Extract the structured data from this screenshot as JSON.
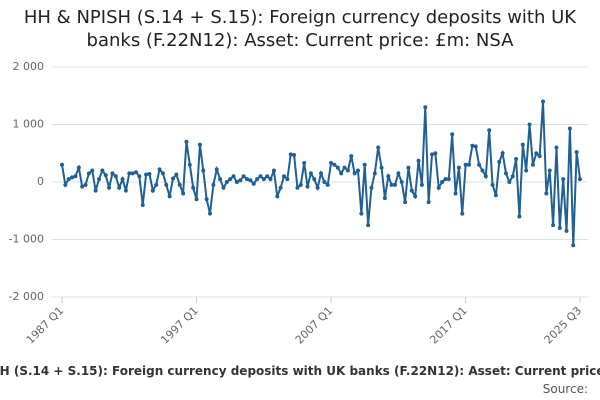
{
  "chart_data": {
    "type": "line",
    "title": "HH & NPISH (S.14 + S.15): Foreign currency deposits with UK banks (F.22N12): Asset: Current price: £m: NSA",
    "source": "Source:",
    "categories": [
      "1987 Q1",
      null,
      null,
      null,
      null,
      null,
      null,
      null,
      null,
      null,
      null,
      null,
      null,
      null,
      null,
      null,
      null,
      null,
      null,
      null,
      null,
      null,
      null,
      null,
      null,
      null,
      null,
      null,
      null,
      null,
      null,
      null,
      null,
      null,
      null,
      null,
      null,
      null,
      null,
      null,
      "1997 Q1",
      null,
      null,
      null,
      null,
      null,
      null,
      null,
      null,
      null,
      null,
      null,
      null,
      null,
      null,
      null,
      null,
      null,
      null,
      null,
      null,
      null,
      null,
      null,
      null,
      null,
      null,
      null,
      null,
      null,
      null,
      null,
      null,
      null,
      null,
      null,
      null,
      null,
      null,
      null,
      "2007 Q1",
      null,
      null,
      null,
      null,
      null,
      null,
      null,
      null,
      null,
      null,
      null,
      null,
      null,
      null,
      null,
      null,
      null,
      null,
      null,
      null,
      null,
      null,
      null,
      null,
      null,
      null,
      null,
      null,
      null,
      null,
      null,
      null,
      null,
      null,
      null,
      null,
      null,
      null,
      null,
      "2017 Q1",
      null,
      null,
      null,
      null,
      null,
      null,
      null,
      null,
      null,
      null,
      null,
      null,
      null,
      null,
      null,
      null,
      null,
      null,
      null,
      null,
      null,
      null,
      null,
      null,
      null,
      null,
      null,
      null,
      null,
      null,
      null,
      null,
      null,
      "2025 Q3"
    ],
    "series": [
      {
        "name": "HH & NPISH (S.14 + S.15): Foreign currency deposits with UK banks (F.22N12): Asset: Current price: £m: NSA",
        "color": "#206095",
        "values": [
          300,
          -50,
          50,
          80,
          100,
          250,
          -80,
          -50,
          150,
          200,
          -150,
          50,
          200,
          120,
          -100,
          150,
          100,
          -100,
          50,
          -150,
          150,
          150,
          170,
          100,
          -400,
          130,
          140,
          -150,
          -50,
          220,
          150,
          -50,
          -250,
          60,
          130,
          -50,
          -200,
          700,
          300,
          -100,
          -300,
          650,
          200,
          -300,
          -550,
          -50,
          220,
          50,
          -100,
          0,
          50,
          100,
          0,
          30,
          100,
          50,
          30,
          -30,
          50,
          100,
          50,
          100,
          50,
          200,
          -250,
          -100,
          100,
          50,
          480,
          470,
          -100,
          -50,
          330,
          -80,
          150,
          50,
          -100,
          150,
          0,
          -50,
          330,
          300,
          250,
          150,
          250,
          200,
          450,
          150,
          200,
          -550,
          300,
          -750,
          -100,
          150,
          600,
          250,
          -280,
          100,
          -50,
          -50,
          150,
          0,
          -350,
          250,
          -150,
          -250,
          370,
          -50,
          1300,
          -350,
          480,
          500,
          -100,
          0,
          50,
          50,
          830,
          -200,
          250,
          -550,
          300,
          300,
          630,
          620,
          300,
          200,
          100,
          900,
          -50,
          -230,
          350,
          500,
          150,
          0,
          100,
          400,
          -600,
          650,
          200,
          1000,
          300,
          500,
          450,
          1400,
          -200,
          200,
          -750,
          600,
          -800,
          50,
          -850,
          930,
          -1100,
          520,
          50
        ]
      }
    ],
    "ylim": [
      -2000,
      2000
    ],
    "yticks": [
      {
        "value": -2000,
        "label": "-2 000"
      },
      {
        "value": -1000,
        "label": "-1 000"
      },
      0,
      {
        "value": 1000,
        "label": "1 000"
      },
      {
        "value": 2000,
        "label": "2 000"
      }
    ],
    "grid": true
  }
}
